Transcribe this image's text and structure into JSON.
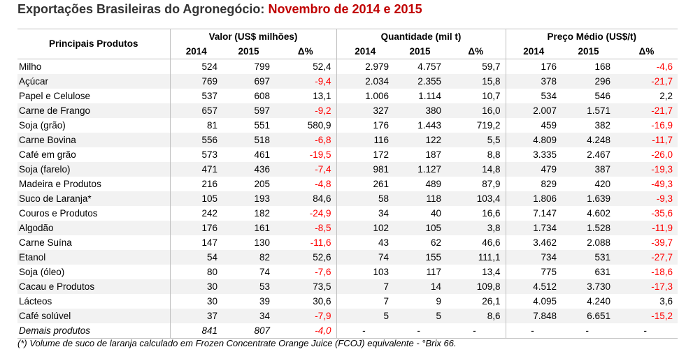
{
  "title": {
    "part1": "Exportações Brasileiras do Agronegócio:",
    "part2": "Novembro de 2014 e 2015"
  },
  "headers": {
    "product": "Principais Produtos",
    "value": "Valor (US$ milhões)",
    "quantity": "Quantidade (mil t)",
    "price": "Preço Médio (US$/t)",
    "y2014": "2014",
    "y2015": "2015",
    "delta": "Δ%"
  },
  "rows": [
    {
      "p": "Milho",
      "v14": "524",
      "v15": "799",
      "vd": "52,4",
      "q14": "2.979",
      "q15": "4.757",
      "qd": "59,7",
      "pr14": "176",
      "pr15": "168",
      "prd": "-4,6"
    },
    {
      "p": "Açúcar",
      "v14": "769",
      "v15": "697",
      "vd": "-9,4",
      "q14": "2.034",
      "q15": "2.355",
      "qd": "15,8",
      "pr14": "378",
      "pr15": "296",
      "prd": "-21,7"
    },
    {
      "p": "Papel e Celulose",
      "v14": "537",
      "v15": "608",
      "vd": "13,1",
      "q14": "1.006",
      "q15": "1.114",
      "qd": "10,7",
      "pr14": "534",
      "pr15": "546",
      "prd": "2,2"
    },
    {
      "p": "Carne de Frango",
      "v14": "657",
      "v15": "597",
      "vd": "-9,2",
      "q14": "327",
      "q15": "380",
      "qd": "16,0",
      "pr14": "2.007",
      "pr15": "1.571",
      "prd": "-21,7"
    },
    {
      "p": "Soja (grão)",
      "v14": "81",
      "v15": "551",
      "vd": "580,9",
      "q14": "176",
      "q15": "1.443",
      "qd": "719,2",
      "pr14": "459",
      "pr15": "382",
      "prd": "-16,9"
    },
    {
      "p": "Carne Bovina",
      "v14": "556",
      "v15": "518",
      "vd": "-6,8",
      "q14": "116",
      "q15": "122",
      "qd": "5,5",
      "pr14": "4.809",
      "pr15": "4.248",
      "prd": "-11,7"
    },
    {
      "p": "Café em grão",
      "v14": "573",
      "v15": "461",
      "vd": "-19,5",
      "q14": "172",
      "q15": "187",
      "qd": "8,8",
      "pr14": "3.335",
      "pr15": "2.467",
      "prd": "-26,0"
    },
    {
      "p": "Soja (farelo)",
      "v14": "471",
      "v15": "436",
      "vd": "-7,4",
      "q14": "981",
      "q15": "1.127",
      "qd": "14,8",
      "pr14": "479",
      "pr15": "387",
      "prd": "-19,3"
    },
    {
      "p": "Madeira e Produtos",
      "v14": "216",
      "v15": "205",
      "vd": "-4,8",
      "q14": "261",
      "q15": "489",
      "qd": "87,9",
      "pr14": "829",
      "pr15": "420",
      "prd": "-49,3"
    },
    {
      "p": "Suco de Laranja*",
      "v14": "105",
      "v15": "193",
      "vd": "84,6",
      "q14": "58",
      "q15": "118",
      "qd": "103,4",
      "pr14": "1.806",
      "pr15": "1.639",
      "prd": "-9,3"
    },
    {
      "p": "Couros e Produtos",
      "v14": "242",
      "v15": "182",
      "vd": "-24,9",
      "q14": "34",
      "q15": "40",
      "qd": "16,6",
      "pr14": "7.147",
      "pr15": "4.602",
      "prd": "-35,6"
    },
    {
      "p": "Algodão",
      "v14": "176",
      "v15": "161",
      "vd": "-8,5",
      "q14": "102",
      "q15": "105",
      "qd": "3,8",
      "pr14": "1.734",
      "pr15": "1.528",
      "prd": "-11,9"
    },
    {
      "p": "Carne Suína",
      "v14": "147",
      "v15": "130",
      "vd": "-11,6",
      "q14": "43",
      "q15": "62",
      "qd": "46,6",
      "pr14": "3.462",
      "pr15": "2.088",
      "prd": "-39,7"
    },
    {
      "p": "Etanol",
      "v14": "54",
      "v15": "82",
      "vd": "52,6",
      "q14": "74",
      "q15": "155",
      "qd": "111,1",
      "pr14": "734",
      "pr15": "531",
      "prd": "-27,7"
    },
    {
      "p": "Soja (óleo)",
      "v14": "80",
      "v15": "74",
      "vd": "-7,6",
      "q14": "103",
      "q15": "117",
      "qd": "13,4",
      "pr14": "775",
      "pr15": "631",
      "prd": "-18,6"
    },
    {
      "p": "Cacau e Produtos",
      "v14": "30",
      "v15": "53",
      "vd": "73,5",
      "q14": "7",
      "q15": "14",
      "qd": "109,8",
      "pr14": "4.512",
      "pr15": "3.730",
      "prd": "-17,3"
    },
    {
      "p": "Lácteos",
      "v14": "30",
      "v15": "39",
      "vd": "30,6",
      "q14": "7",
      "q15": "9",
      "qd": "26,1",
      "pr14": "4.095",
      "pr15": "4.240",
      "prd": "3,6"
    },
    {
      "p": "Café solúvel",
      "v14": "37",
      "v15": "34",
      "vd": "-7,9",
      "q14": "5",
      "q15": "5",
      "qd": "8,6",
      "pr14": "7.848",
      "pr15": "6.651",
      "prd": "-15,2"
    }
  ],
  "other_row": {
    "p": "Demais produtos",
    "v14": "841",
    "v15": "807",
    "vd": "-4,0",
    "q14": "-",
    "q15": "-",
    "qd": "-",
    "pr14": "-",
    "pr15": "-",
    "prd": "-"
  },
  "footnote": "(*) Volume de suco de laranja calculado em Frozen Concentrate Orange Juice (FCOJ) equivalente - °Brix 66.",
  "colors": {
    "title_highlight": "#c00000",
    "negative": "#ff0000",
    "stripe": "#f2f2f2"
  }
}
